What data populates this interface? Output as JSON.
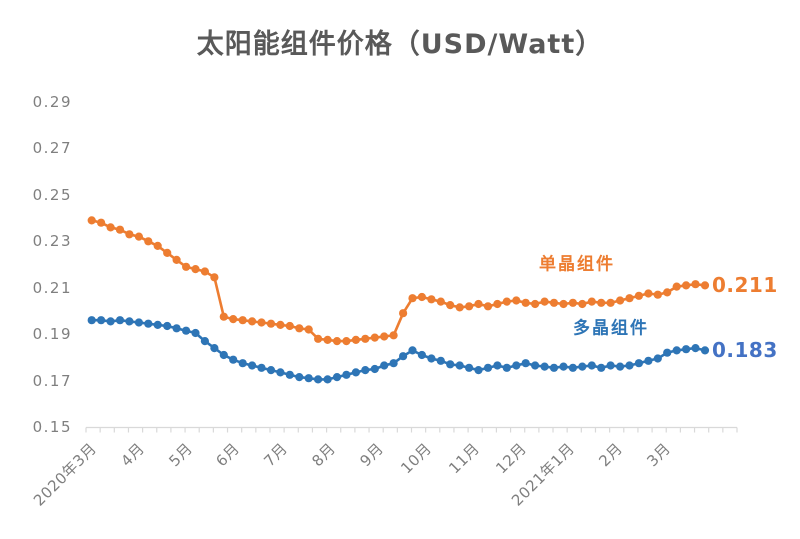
{
  "title": "太阳能组件价格（USD/Watt）",
  "colors": {
    "title": "#595959",
    "axis_labels": "#7F7F7F",
    "axis_line": "#D9D9D9",
    "mono_series": "#ED7D31",
    "poly_series": "#2E75B6",
    "poly_end_label": "#4472C4"
  },
  "chart_data": {
    "type": "line",
    "title": "太阳能组件价格（USD/Watt）",
    "grid": false,
    "legend_position": "inline-right-of-lines",
    "y_axis": {
      "min": 0.15,
      "max": 0.29,
      "tick_step": 0.02,
      "tick_labels": [
        "0.29",
        "0.27",
        "0.25",
        "0.23",
        "0.21",
        "0.19",
        "0.17",
        "0.15"
      ],
      "tick_values": [
        0.29,
        0.27,
        0.25,
        0.23,
        0.21,
        0.19,
        0.17,
        0.15
      ]
    },
    "x_axis": {
      "labels": [
        "2020年3月",
        "4月",
        "5月",
        "6月",
        "7月",
        "8月",
        "9月",
        "10月",
        "11月",
        "12月",
        "2021年1月",
        "2月",
        "3月"
      ]
    },
    "series": [
      {
        "name": "单晶组件",
        "color": "#ED7D31",
        "end_value_label": "0.211",
        "end_label_color": "#ED7D31",
        "values": [
          0.239,
          0.238,
          0.236,
          0.235,
          0.233,
          0.232,
          0.23,
          0.228,
          0.225,
          0.222,
          0.219,
          0.218,
          0.217,
          0.2145,
          0.1975,
          0.1965,
          0.196,
          0.1955,
          0.195,
          0.1945,
          0.194,
          0.1935,
          0.1925,
          0.192,
          0.188,
          0.1875,
          0.187,
          0.187,
          0.1875,
          0.188,
          0.1885,
          0.189,
          0.1895,
          0.199,
          0.2055,
          0.206,
          0.205,
          0.204,
          0.2025,
          0.2015,
          0.202,
          0.203,
          0.202,
          0.203,
          0.204,
          0.2045,
          0.2035,
          0.203,
          0.204,
          0.2035,
          0.203,
          0.2035,
          0.203,
          0.204,
          0.2035,
          0.2035,
          0.2045,
          0.2055,
          0.2065,
          0.2075,
          0.207,
          0.208,
          0.2105,
          0.211,
          0.2115,
          0.211
        ]
      },
      {
        "name": "多晶组件",
        "color": "#2E75B6",
        "end_value_label": "0.183",
        "end_label_color": "#4472C4",
        "values": [
          0.196,
          0.196,
          0.1955,
          0.196,
          0.1955,
          0.195,
          0.1945,
          0.194,
          0.1935,
          0.1925,
          0.1915,
          0.1905,
          0.187,
          0.184,
          0.181,
          0.179,
          0.1775,
          0.1765,
          0.1755,
          0.1745,
          0.1735,
          0.1725,
          0.1715,
          0.171,
          0.1705,
          0.1705,
          0.1715,
          0.1725,
          0.1735,
          0.1745,
          0.175,
          0.1765,
          0.1775,
          0.1805,
          0.183,
          0.181,
          0.1795,
          0.1785,
          0.177,
          0.1765,
          0.1755,
          0.1745,
          0.1755,
          0.1765,
          0.1755,
          0.1765,
          0.1775,
          0.1765,
          0.176,
          0.1755,
          0.176,
          0.1755,
          0.176,
          0.1765,
          0.1755,
          0.1765,
          0.176,
          0.1765,
          0.1775,
          0.1785,
          0.1795,
          0.182,
          0.183,
          0.1835,
          0.184,
          0.183
        ]
      }
    ]
  }
}
